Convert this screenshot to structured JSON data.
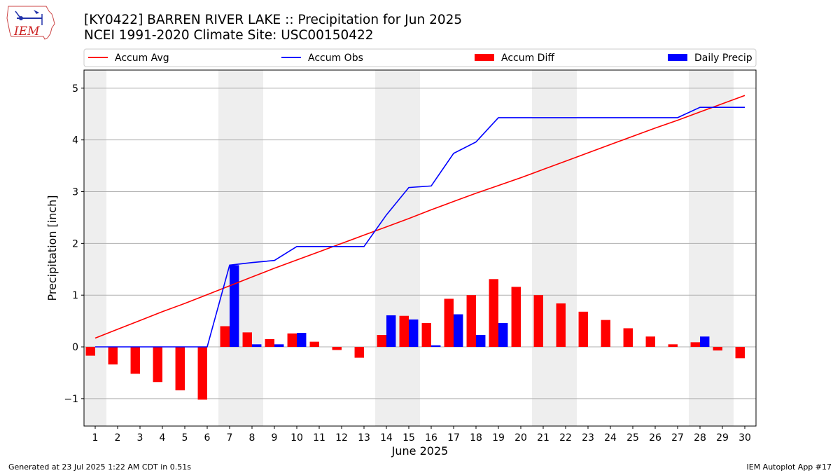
{
  "header": {
    "title": "[KY0422] BARREN RIVER LAKE :: Precipitation for Jun 2025",
    "subtitle": "NCEI 1991-2020 Climate Site: USC00150422",
    "logo_text": "IEM"
  },
  "footer": {
    "left": "Generated at 23 Jul 2025 1:22 AM CDT in 0.51s",
    "right": "IEM Autoplot App #17"
  },
  "colors": {
    "avg": "#ff0000",
    "obs": "#0000ff",
    "diff": "#ff0000",
    "daily": "#0000ff",
    "weekend_band": "#eeeeee",
    "grid": "#b0b0b0"
  },
  "chart_data": {
    "type": "bar",
    "xlabel": "June 2025",
    "ylabel": "Precipitation [inch]",
    "ylim": [
      -1.53,
      5.35
    ],
    "yticks": [
      -1,
      0,
      1,
      2,
      3,
      4,
      5
    ],
    "ytick_labels": [
      "−1",
      "0",
      "1",
      "2",
      "3",
      "4",
      "5"
    ],
    "grid": "horizontal",
    "legend_placement": "top, above plot",
    "days": [
      1,
      2,
      3,
      4,
      5,
      6,
      7,
      8,
      9,
      10,
      11,
      12,
      13,
      14,
      15,
      16,
      17,
      18,
      19,
      20,
      21,
      22,
      23,
      24,
      25,
      26,
      27,
      28,
      29,
      30
    ],
    "weekend_days": [
      1,
      7,
      8,
      14,
      15,
      21,
      22,
      28,
      29
    ],
    "legend": [
      {
        "label": "Accum Avg",
        "kind": "line",
        "color": "#ff0000"
      },
      {
        "label": "Accum Obs",
        "kind": "line",
        "color": "#0000ff"
      },
      {
        "label": "Accum Diff",
        "kind": "bar",
        "color": "#ff0000"
      },
      {
        "label": "Daily Precip",
        "kind": "bar",
        "color": "#0000ff"
      }
    ],
    "series": [
      {
        "name": "Accum Avg",
        "type": "line",
        "values": [
          0.17,
          0.34,
          0.51,
          0.68,
          0.84,
          1.01,
          1.18,
          1.35,
          1.52,
          1.68,
          1.84,
          2.0,
          2.16,
          2.32,
          2.48,
          2.65,
          2.81,
          2.97,
          3.12,
          3.27,
          3.43,
          3.59,
          3.75,
          3.91,
          4.07,
          4.23,
          4.38,
          4.54,
          4.7,
          4.86
        ]
      },
      {
        "name": "Accum Obs",
        "type": "line",
        "values": [
          0,
          0,
          0,
          0,
          0,
          0,
          1.58,
          1.63,
          1.67,
          1.94,
          1.94,
          1.94,
          1.94,
          2.55,
          3.08,
          3.11,
          3.74,
          3.96,
          4.43,
          4.43,
          4.43,
          4.43,
          4.43,
          4.43,
          4.43,
          4.43,
          4.43,
          4.63,
          4.63,
          4.63
        ]
      },
      {
        "name": "Accum Diff",
        "type": "bar",
        "values": [
          -0.17,
          -0.34,
          -0.52,
          -0.68,
          -0.84,
          -1.02,
          0.4,
          0.28,
          0.15,
          0.26,
          0.1,
          -0.06,
          -0.21,
          0.23,
          0.6,
          0.46,
          0.93,
          1.0,
          1.31,
          1.16,
          1.0,
          0.84,
          0.68,
          0.52,
          0.36,
          0.2,
          0.05,
          0.09,
          -0.07,
          -0.22
        ]
      },
      {
        "name": "Daily Precip",
        "type": "bar",
        "values": [
          0,
          0,
          0,
          0,
          0,
          0,
          1.58,
          0.05,
          0.05,
          0.27,
          0,
          0,
          0,
          0.61,
          0.53,
          0.03,
          0.63,
          0.23,
          0.46,
          0,
          0,
          0,
          0,
          0,
          0,
          0,
          0,
          0.2,
          0,
          0
        ]
      }
    ]
  }
}
